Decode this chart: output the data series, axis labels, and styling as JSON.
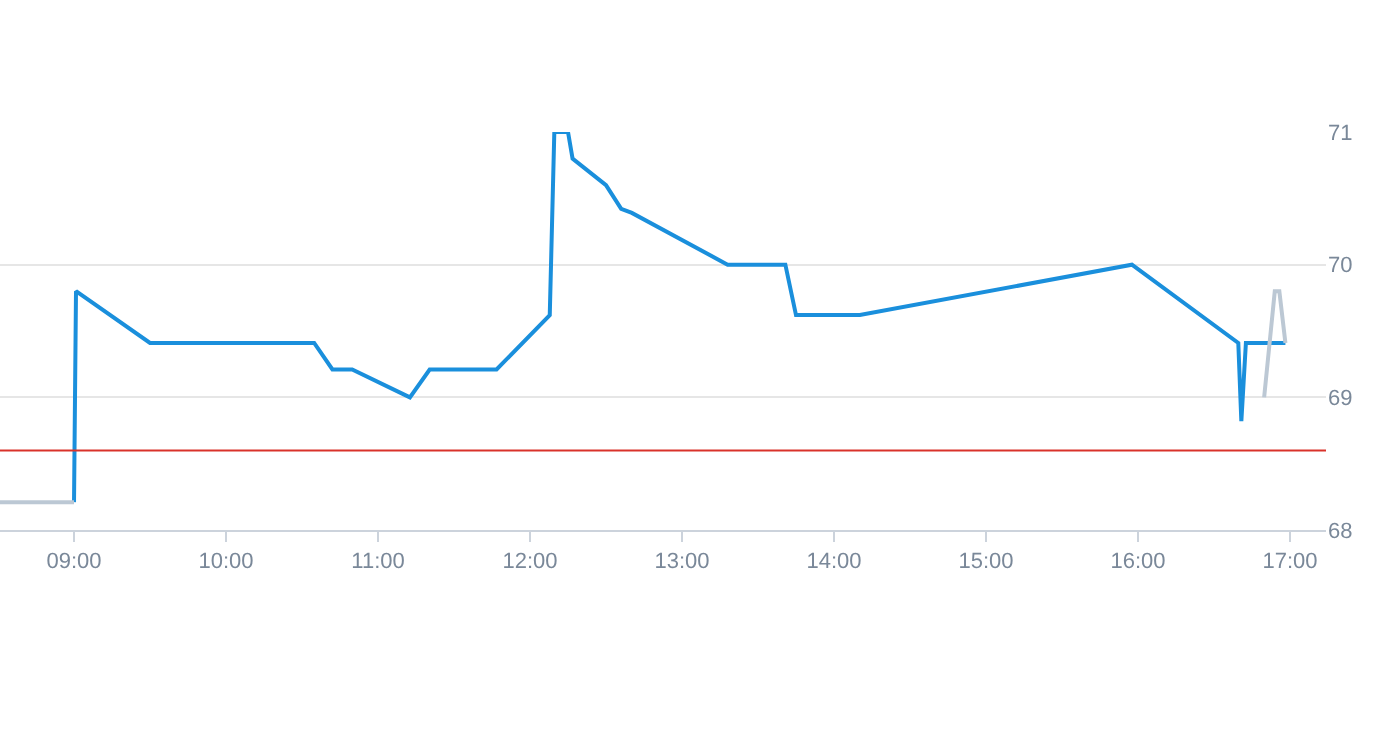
{
  "chart_data": {
    "type": "line",
    "x": [
      9.0,
      9.013,
      9.5,
      10.58,
      10.7,
      10.83,
      11.21,
      11.34,
      11.78,
      12.13,
      12.16,
      12.25,
      12.28,
      12.5,
      12.6,
      12.67,
      13.3,
      13.68,
      13.75,
      14.17,
      15.96,
      16.66,
      16.68,
      16.71,
      16.97
    ],
    "series": [
      {
        "color": "#1a8fdc",
        "values": [
          68.21,
          69.8,
          69.41,
          69.41,
          69.21,
          69.21,
          69.0,
          69.21,
          69.21,
          69.62,
          71.0,
          71.0,
          70.8,
          70.6,
          70.42,
          70.39,
          70.0,
          70.0,
          69.62,
          69.62,
          70.0,
          69.41,
          68.82,
          69.41,
          69.41
        ]
      },
      {
        "color": "#bcc8d4",
        "x": [
          8.513,
          9.0,
          12.0,
          16.83,
          16.9,
          16.93,
          16.97
        ],
        "values": [
          68.21,
          68.21,
          null,
          69.0,
          69.8,
          69.8,
          69.41
        ]
      }
    ],
    "xlim": [
      8.513,
      17.237
    ],
    "xticks": [
      {
        "value": 9,
        "label": "09:00"
      },
      {
        "value": 10,
        "label": "10:00"
      },
      {
        "value": 11,
        "label": "11:00"
      },
      {
        "value": 12,
        "label": "12:00"
      },
      {
        "value": 13,
        "label": "13:00"
      },
      {
        "value": 14,
        "label": "14:00"
      },
      {
        "value": 15,
        "label": "15:00"
      },
      {
        "value": 16,
        "label": "16:00"
      },
      {
        "value": 17,
        "label": "17:00"
      }
    ],
    "ylim": [
      68,
      71
    ],
    "yticks": [
      68,
      69,
      70,
      71
    ],
    "ref_lines": [
      {
        "axis": "y",
        "value": 68.6,
        "color": "#d9322b"
      }
    ],
    "grid": "y",
    "marker": "none",
    "line_style": "solid"
  }
}
